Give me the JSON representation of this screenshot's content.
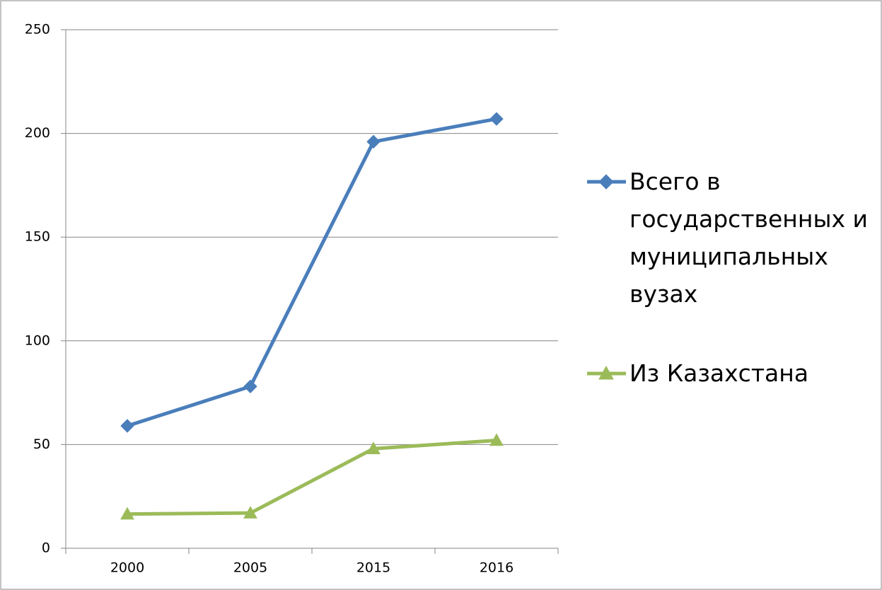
{
  "chart_data": {
    "type": "line",
    "categories": [
      "2000",
      "2005",
      "2015",
      "2016"
    ],
    "series": [
      {
        "name": "Всего в государственных и муниципальных вузах",
        "color": "#4a7ebb",
        "marker": "diamond",
        "values": [
          59,
          78,
          196,
          207
        ]
      },
      {
        "name": "Из Казахстана",
        "color": "#9bbb59",
        "marker": "triangle",
        "values": [
          16.5,
          17,
          48,
          52
        ]
      }
    ],
    "ylim": [
      0,
      250
    ],
    "yticks": [
      0,
      50,
      100,
      150,
      200,
      250
    ],
    "grid": true,
    "legend": "right"
  }
}
